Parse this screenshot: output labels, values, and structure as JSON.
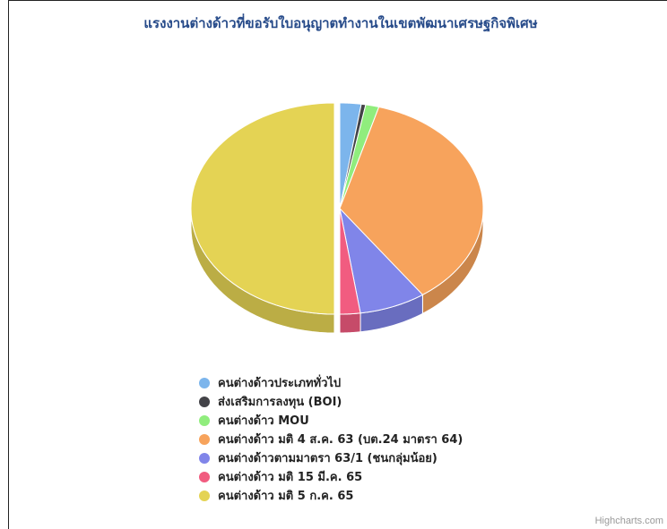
{
  "chart_data": {
    "type": "pie",
    "title": "แรงงานต่างด้าวที่ขอรับใบอนุญาตทำงานในเขตพัฒนาเศรษฐกิจพิเศษ",
    "series": [
      {
        "name": "คนต่างด้าวประเภททั่วไป",
        "value": 2.4,
        "color": "#7cb5ec"
      },
      {
        "name": "ส่งเสริมการลงทุน (BOI)",
        "value": 0.5,
        "color": "#434348"
      },
      {
        "name": "คนต่างด้าว MOU",
        "value": 1.5,
        "color": "#90ed7d"
      },
      {
        "name": "คนต่างด้าว มติ 4 ส.ค. 63 (บต.24 มาตรา 64)",
        "value": 35.8,
        "color": "#f7a35c"
      },
      {
        "name": "คนต่างด้าวตามมาตรา 63/1 (ชนกลุ่มน้อย)",
        "value": 7.5,
        "color": "#8085e9"
      },
      {
        "name": "คนต่างด้าว มติ 15 มี.ค. 65",
        "value": 2.3,
        "color": "#f15c80"
      },
      {
        "name": "คนต่างด้าว มติ 5 ก.ค. 65",
        "value": 50.0,
        "color": "#e4d354"
      }
    ],
    "legend_position": "bottom"
  },
  "credits": "Highcharts.com"
}
